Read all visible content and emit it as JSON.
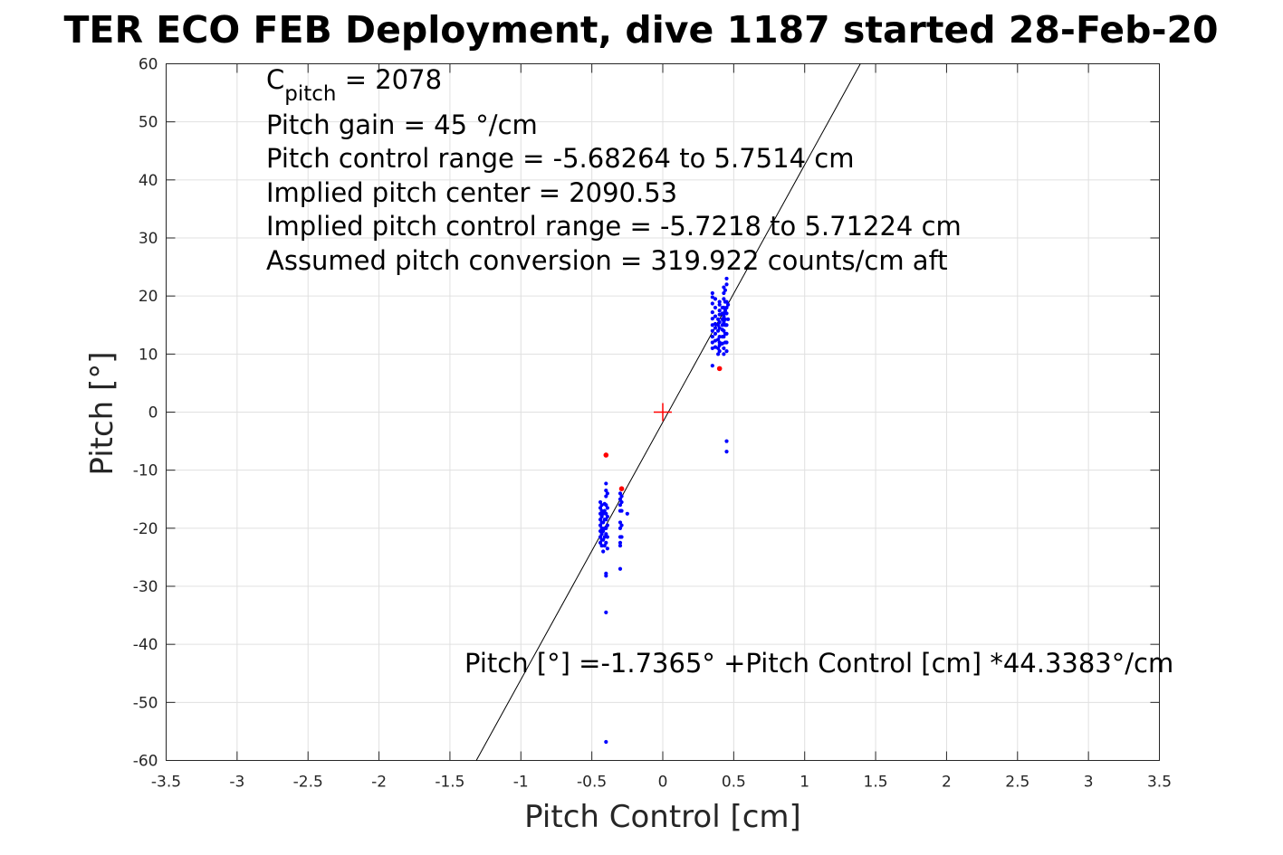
{
  "chart_data": {
    "type": "scatter",
    "title": "TER ECO FEB Deployment, dive 1187 started 28-Feb-20",
    "xlabel": "Pitch Control [cm]",
    "ylabel": "Pitch [°]",
    "xlim": [
      -3.5,
      3.5
    ],
    "ylim": [
      -60,
      60
    ],
    "xticks": [
      "-3.5",
      "-3",
      "-2.5",
      "-2",
      "-1.5",
      "-1",
      "-0.5",
      "0",
      "0.5",
      "1",
      "1.5",
      "2",
      "2.5",
      "3",
      "3.5"
    ],
    "yticks": [
      "60",
      "50",
      "40",
      "30",
      "20",
      "10",
      "0",
      "-10",
      "-20",
      "-30",
      "-40",
      "-50",
      "-60"
    ],
    "grid": true,
    "colors": {
      "main": "#0000ff",
      "outlier": "#ff0000",
      "fit": "#000000",
      "center": "#ff0000"
    },
    "annotations": {
      "cpitch_base": "C",
      "cpitch_sub": "pitch",
      "cpitch_value": " = 2078",
      "pitch_gain": "Pitch gain = 45 °/cm",
      "control_range": "Pitch control range = -5.68264 to 5.7514 cm",
      "implied_center": "Implied pitch center = 2090.53",
      "implied_range": "Implied pitch control range = -5.7218 to 5.71224 cm",
      "conversion": "Assumed pitch conversion = 319.922 counts/cm aft",
      "fit_equation": "Pitch [°] =-1.7365° +Pitch Control [cm] *44.3383°/cm"
    },
    "fit_line": {
      "intercept": -1.7365,
      "slope": 44.3383
    },
    "center_marker": {
      "x": 0,
      "y": 0
    },
    "series": [
      {
        "role": "main",
        "points": [
          [
            0.35,
            20.5
          ],
          [
            0.35,
            19.8
          ],
          [
            0.35,
            18.7
          ],
          [
            0.35,
            17.2
          ],
          [
            0.35,
            16.1
          ],
          [
            0.35,
            15.0
          ],
          [
            0.35,
            14.0
          ],
          [
            0.35,
            13.0
          ],
          [
            0.35,
            12.0
          ],
          [
            0.35,
            11.0
          ],
          [
            0.35,
            8.0
          ],
          [
            0.37,
            19.5
          ],
          [
            0.37,
            18.0
          ],
          [
            0.37,
            16.5
          ],
          [
            0.37,
            15.2
          ],
          [
            0.37,
            14.5
          ],
          [
            0.37,
            13.5
          ],
          [
            0.37,
            12.3
          ],
          [
            0.37,
            11.2
          ],
          [
            0.39,
            16.0
          ],
          [
            0.39,
            15.0
          ],
          [
            0.39,
            14.0
          ],
          [
            0.39,
            12.5
          ],
          [
            0.39,
            11.0
          ],
          [
            0.39,
            10.0
          ],
          [
            0.4,
            19.0
          ],
          [
            0.4,
            18.5
          ],
          [
            0.4,
            17.5
          ],
          [
            0.4,
            16.8
          ],
          [
            0.4,
            15.5
          ],
          [
            0.4,
            14.5
          ],
          [
            0.4,
            13.0
          ],
          [
            0.4,
            12.0
          ],
          [
            0.4,
            11.5
          ],
          [
            0.4,
            10.5
          ],
          [
            0.42,
            18.0
          ],
          [
            0.42,
            17.0
          ],
          [
            0.42,
            16.0
          ],
          [
            0.42,
            15.0
          ],
          [
            0.42,
            14.2
          ],
          [
            0.42,
            13.0
          ],
          [
            0.42,
            11.8
          ],
          [
            0.43,
            21.5
          ],
          [
            0.43,
            20.5
          ],
          [
            0.43,
            19.5
          ],
          [
            0.43,
            18.0
          ],
          [
            0.43,
            17.0
          ],
          [
            0.43,
            16.5
          ],
          [
            0.43,
            15.5
          ],
          [
            0.43,
            14.0
          ],
          [
            0.43,
            13.0
          ],
          [
            0.43,
            11.0
          ],
          [
            0.43,
            10.0
          ],
          [
            0.44,
            21.0
          ],
          [
            0.44,
            19.0
          ],
          [
            0.44,
            17.5
          ],
          [
            0.44,
            16.0
          ],
          [
            0.44,
            15.0
          ],
          [
            0.44,
            13.5
          ],
          [
            0.44,
            12.0
          ],
          [
            0.45,
            23.0
          ],
          [
            0.45,
            22.0
          ],
          [
            0.45,
            19.0
          ],
          [
            0.45,
            18.0
          ],
          [
            0.45,
            17.0
          ],
          [
            0.45,
            15.0
          ],
          [
            0.45,
            13.5
          ],
          [
            0.45,
            12.0
          ],
          [
            0.45,
            10.5
          ],
          [
            0.46,
            18.5
          ],
          [
            0.46,
            16.0
          ],
          [
            0.45,
            -5.0
          ],
          [
            0.45,
            -6.8
          ],
          [
            -0.44,
            -15.5
          ],
          [
            -0.44,
            -16.5
          ],
          [
            -0.44,
            -17.5
          ],
          [
            -0.44,
            -18.5
          ],
          [
            -0.44,
            -19.5
          ],
          [
            -0.44,
            -20.5
          ],
          [
            -0.44,
            -21.5
          ],
          [
            -0.44,
            -22.5
          ],
          [
            -0.43,
            -16.0
          ],
          [
            -0.43,
            -17.0
          ],
          [
            -0.43,
            -18.0
          ],
          [
            -0.43,
            -19.0
          ],
          [
            -0.43,
            -20.0
          ],
          [
            -0.43,
            -21.0
          ],
          [
            -0.43,
            -22.0
          ],
          [
            -0.43,
            -23.0
          ],
          [
            -0.42,
            -17.5
          ],
          [
            -0.42,
            -19.0
          ],
          [
            -0.42,
            -20.5
          ],
          [
            -0.42,
            -22.0
          ],
          [
            -0.42,
            -24.0
          ],
          [
            -0.41,
            -15.8
          ],
          [
            -0.41,
            -17.0
          ],
          [
            -0.41,
            -18.5
          ],
          [
            -0.41,
            -20.0
          ],
          [
            -0.41,
            -21.5
          ],
          [
            -0.41,
            -23.0
          ],
          [
            -0.4,
            -12.3
          ],
          [
            -0.4,
            -13.5
          ],
          [
            -0.4,
            -14.5
          ],
          [
            -0.4,
            -16.0
          ],
          [
            -0.4,
            -17.5
          ],
          [
            -0.4,
            -18.5
          ],
          [
            -0.4,
            -20.0
          ],
          [
            -0.4,
            -21.0
          ],
          [
            -0.4,
            -22.5
          ],
          [
            -0.4,
            -27.8
          ],
          [
            -0.4,
            -28.2
          ],
          [
            -0.4,
            -34.5
          ],
          [
            -0.4,
            -56.8
          ],
          [
            -0.39,
            -14.0
          ],
          [
            -0.39,
            -16.5
          ],
          [
            -0.39,
            -18.0
          ],
          [
            -0.39,
            -19.5
          ],
          [
            -0.39,
            -21.5
          ],
          [
            -0.39,
            -23.5
          ],
          [
            -0.3,
            -14.0
          ],
          [
            -0.3,
            -15.0
          ],
          [
            -0.3,
            -16.0
          ],
          [
            -0.3,
            -17.0
          ],
          [
            -0.3,
            -19.0
          ],
          [
            -0.3,
            -20.0
          ],
          [
            -0.3,
            -21.5
          ],
          [
            -0.3,
            -22.5
          ],
          [
            -0.3,
            -23.0
          ],
          [
            -0.3,
            -27.0
          ],
          [
            -0.29,
            -14.5
          ],
          [
            -0.29,
            -15.5
          ],
          [
            -0.29,
            -17.0
          ],
          [
            -0.29,
            -19.5
          ],
          [
            -0.29,
            -21.5
          ],
          [
            -0.25,
            -17.5
          ]
        ]
      },
      {
        "role": "outlier",
        "points": [
          [
            0.4,
            7.5
          ],
          [
            -0.4,
            -7.4
          ],
          [
            -0.29,
            -13.2
          ]
        ]
      }
    ]
  }
}
